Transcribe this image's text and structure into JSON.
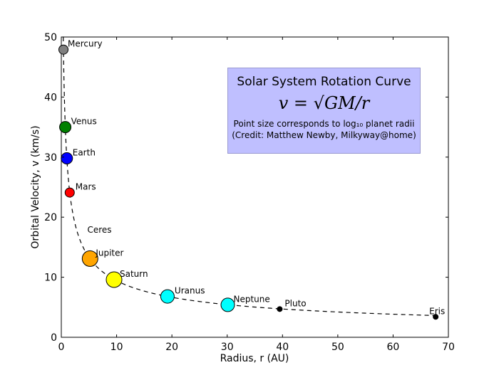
{
  "chart_data": {
    "type": "scatter",
    "title": "Solar System Rotation Curve",
    "formula": "v = √GM/r",
    "note_line1": "Point size corresponds to log₁₀ planet radii",
    "note_line2": "(Credit: Matthew Newby, Milkyway@home)",
    "xlabel": "Radius, r (AU)",
    "ylabel": "Orbital Velocity, v (km/s)",
    "xlim": [
      0,
      70
    ],
    "ylim": [
      0,
      50
    ],
    "xticks": [
      0,
      10,
      20,
      30,
      40,
      50,
      60,
      70
    ],
    "yticks": [
      0,
      10,
      20,
      30,
      40,
      50
    ],
    "grid": false,
    "legend_position": "top-right",
    "curve": {
      "name": "v = sqrt(GM/r)",
      "style": "dashed",
      "k": 29.78
    },
    "points": [
      {
        "name": "Mercury",
        "x": 0.39,
        "y": 47.9,
        "color": "#808080",
        "size": "small"
      },
      {
        "name": "Venus",
        "x": 0.72,
        "y": 35.0,
        "color": "#008000",
        "size": "medium"
      },
      {
        "name": "Earth",
        "x": 1.0,
        "y": 29.8,
        "color": "#0000ff",
        "size": "medium"
      },
      {
        "name": "Mars",
        "x": 1.52,
        "y": 24.1,
        "color": "#ff0000",
        "size": "small"
      },
      {
        "name": "Ceres",
        "x": 2.77,
        "y": 17.9,
        "color": "none",
        "size": "none"
      },
      {
        "name": "Jupiter",
        "x": 5.2,
        "y": 13.1,
        "color": "#ffa500",
        "size": "large"
      },
      {
        "name": "Saturn",
        "x": 9.54,
        "y": 9.6,
        "color": "#ffff00",
        "size": "large"
      },
      {
        "name": "Uranus",
        "x": 19.2,
        "y": 6.8,
        "color": "#00ffff",
        "size": "medium-large"
      },
      {
        "name": "Neptune",
        "x": 30.1,
        "y": 5.4,
        "color": "#00ffff",
        "size": "medium-large"
      },
      {
        "name": "Pluto",
        "x": 39.5,
        "y": 4.7,
        "color": "#000000",
        "size": "tiny"
      },
      {
        "name": "Eris",
        "x": 67.7,
        "y": 3.4,
        "color": "#000000",
        "size": "tiny"
      }
    ]
  }
}
